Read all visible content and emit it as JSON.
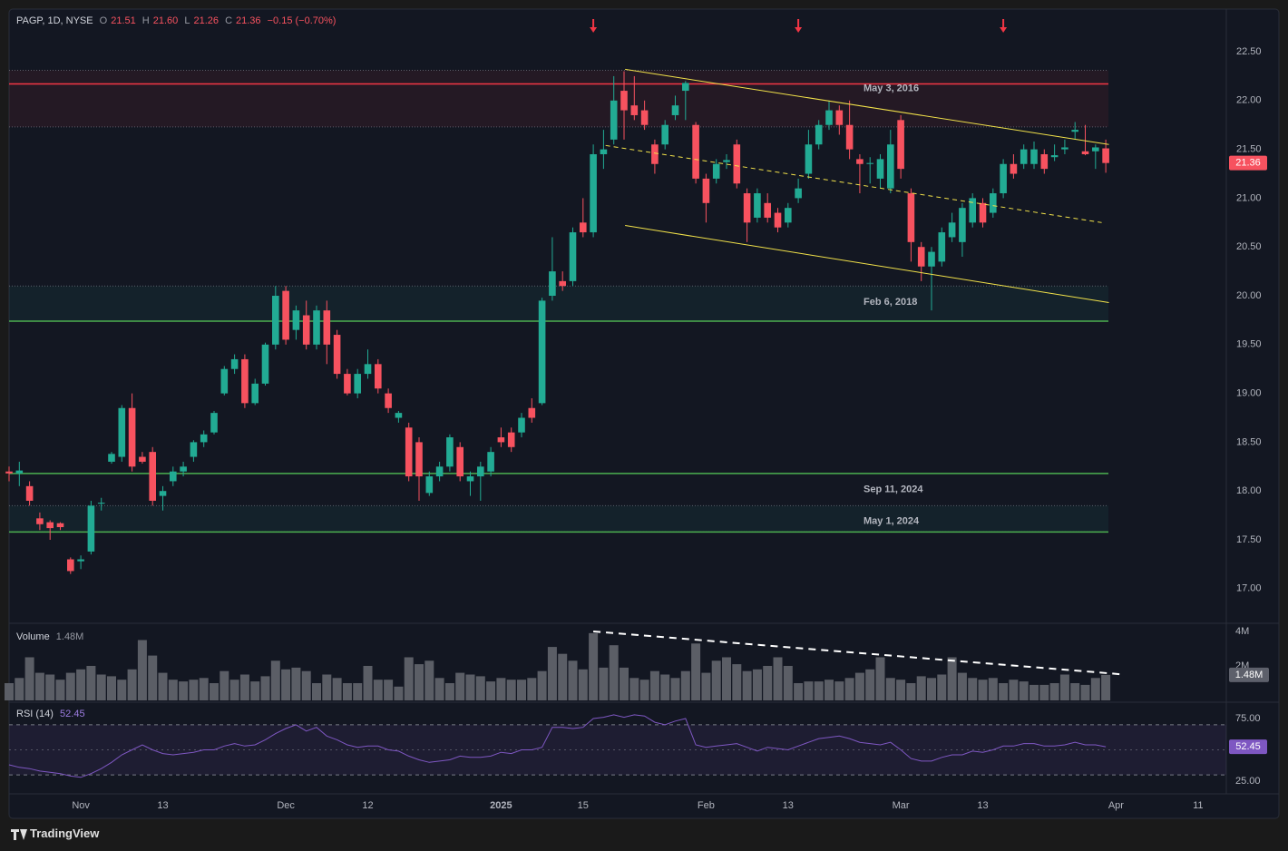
{
  "chart_data": [
    {
      "type": "candlestick",
      "title": "PAGP, 1D, NYSE",
      "legend": [
        {
          "label": "O",
          "value": "21.51"
        },
        {
          "label": "H",
          "value": "21.60"
        },
        {
          "label": "L",
          "value": "21.26"
        },
        {
          "label": "C",
          "value": "21.36"
        }
      ],
      "change": "−0.15 (−0.70%)",
      "up_color": "#22ab94",
      "down_color": "#f7525f",
      "x": [
        0,
        1,
        2,
        3,
        4,
        5,
        6,
        7,
        8,
        9,
        10,
        11,
        12,
        13,
        14,
        15,
        16,
        17,
        18,
        19,
        20,
        21,
        22,
        23,
        24,
        25,
        26,
        27,
        28,
        29,
        30,
        31,
        32,
        33,
        34,
        35,
        36,
        37,
        38,
        39,
        40,
        41,
        42,
        43,
        44,
        45,
        46,
        47,
        48,
        49,
        50,
        51,
        52,
        53,
        54,
        55,
        56,
        57,
        58,
        59,
        60,
        61,
        62,
        63,
        64,
        65,
        66,
        67,
        68,
        69,
        70,
        71,
        72,
        73,
        74,
        75,
        76,
        77,
        78,
        79,
        80,
        81,
        82,
        83,
        84,
        85,
        86,
        87,
        88,
        89,
        90,
        91,
        92,
        93,
        94,
        95,
        96,
        97,
        98,
        99,
        100,
        101,
        102,
        103,
        104,
        105,
        106,
        107
      ],
      "open": [
        18.2,
        18.18,
        18.05,
        17.72,
        17.68,
        17.67,
        17.3,
        17.28,
        17.38,
        17.87,
        18.3,
        18.35,
        18.85,
        18.35,
        18.4,
        17.95,
        18.1,
        18.2,
        18.35,
        18.5,
        18.6,
        19.0,
        19.25,
        19.35,
        18.9,
        19.1,
        19.5,
        20.05,
        19.65,
        19.8,
        19.5,
        19.85,
        19.6,
        19.2,
        19.0,
        19.2,
        19.3,
        19.0,
        18.75,
        18.65,
        18.5,
        17.98,
        18.15,
        18.25,
        18.45,
        18.1,
        18.15,
        18.2,
        18.55,
        18.6,
        18.6,
        18.85,
        18.9,
        20.0,
        20.15,
        20.15,
        20.75,
        20.65,
        21.45,
        21.6,
        22.1,
        21.95,
        21.9,
        21.55,
        21.55,
        21.85,
        22.1,
        21.75,
        21.2,
        21.2,
        21.37,
        21.55,
        21.05,
        20.8,
        20.95,
        20.85,
        20.75,
        21.0,
        21.25,
        21.55,
        21.75,
        21.9,
        21.75,
        21.4,
        21.35,
        21.2,
        21.1,
        21.8,
        21.05,
        20.5,
        20.3,
        20.35,
        20.6,
        20.55,
        20.75,
        20.95,
        20.85,
        21.05,
        21.35,
        21.35,
        21.35,
        21.45,
        21.42,
        21.5,
        21.68,
        21.48,
        21.48,
        21.51
      ],
      "high": [
        18.25,
        18.3,
        18.1,
        17.78,
        17.7,
        17.68,
        17.32,
        17.34,
        17.9,
        17.93,
        18.4,
        18.88,
        19.0,
        18.4,
        18.45,
        18.05,
        18.25,
        18.3,
        18.52,
        18.62,
        18.82,
        19.28,
        19.4,
        19.4,
        19.15,
        19.52,
        20.1,
        20.1,
        19.9,
        19.95,
        19.9,
        19.95,
        19.65,
        19.25,
        19.25,
        19.45,
        19.35,
        19.05,
        18.82,
        18.7,
        18.55,
        18.2,
        18.3,
        18.58,
        18.5,
        18.2,
        18.3,
        18.45,
        18.65,
        18.65,
        18.8,
        18.95,
        19.98,
        20.6,
        20.25,
        20.7,
        21.0,
        21.55,
        21.7,
        22.25,
        22.3,
        22.25,
        22.0,
        21.6,
        21.8,
        22.05,
        22.2,
        21.78,
        21.25,
        21.4,
        21.45,
        21.6,
        21.1,
        21.1,
        21.05,
        20.9,
        20.95,
        21.2,
        21.7,
        21.8,
        22.0,
        21.95,
        22.0,
        21.45,
        21.42,
        21.45,
        21.7,
        21.85,
        21.1,
        20.55,
        20.5,
        20.7,
        20.85,
        20.95,
        21.05,
        21.0,
        21.1,
        21.4,
        21.45,
        21.55,
        21.58,
        21.5,
        21.55,
        21.6,
        21.78,
        21.75,
        21.55,
        21.6
      ],
      "low": [
        18.1,
        18.05,
        17.85,
        17.6,
        17.5,
        17.6,
        17.15,
        17.2,
        17.35,
        17.8,
        18.28,
        18.3,
        18.2,
        18.28,
        17.85,
        17.8,
        18.05,
        18.15,
        18.3,
        18.45,
        18.58,
        18.98,
        19.2,
        18.85,
        18.88,
        19.08,
        19.45,
        19.5,
        19.55,
        19.45,
        19.45,
        19.3,
        19.15,
        18.98,
        18.95,
        19.15,
        19.0,
        18.8,
        18.7,
        18.1,
        17.9,
        17.95,
        18.1,
        18.2,
        18.1,
        17.95,
        17.9,
        18.15,
        18.45,
        18.4,
        18.55,
        18.7,
        18.88,
        19.95,
        20.05,
        20.1,
        20.6,
        20.6,
        21.3,
        21.55,
        21.6,
        21.8,
        21.7,
        21.25,
        21.5,
        21.8,
        21.8,
        21.15,
        20.75,
        21.15,
        21.3,
        21.1,
        20.55,
        20.75,
        20.75,
        20.65,
        20.7,
        20.95,
        21.2,
        21.5,
        21.7,
        21.65,
        21.4,
        21.05,
        21.15,
        21.1,
        21.05,
        21.2,
        20.35,
        20.15,
        19.85,
        20.3,
        20.55,
        20.4,
        20.7,
        20.7,
        20.8,
        21.0,
        21.2,
        21.3,
        21.3,
        21.25,
        21.38,
        21.45,
        21.6,
        21.44,
        21.3,
        21.26
      ],
      "close": [
        18.18,
        18.21,
        17.9,
        17.66,
        17.62,
        17.63,
        17.18,
        17.3,
        17.85,
        17.88,
        18.38,
        18.85,
        18.25,
        18.3,
        17.9,
        18.0,
        18.2,
        18.25,
        18.5,
        18.58,
        18.8,
        19.25,
        19.35,
        18.9,
        19.1,
        19.5,
        20.0,
        19.55,
        19.85,
        19.5,
        19.85,
        19.5,
        19.2,
        19.0,
        19.2,
        19.3,
        19.05,
        18.85,
        18.8,
        18.15,
        18.15,
        18.15,
        18.25,
        18.55,
        18.15,
        18.15,
        18.25,
        18.4,
        18.5,
        18.45,
        18.75,
        18.75,
        19.95,
        20.25,
        20.1,
        20.65,
        20.65,
        21.45,
        21.5,
        22.0,
        21.9,
        21.85,
        21.75,
        21.35,
        21.75,
        21.95,
        22.18,
        21.2,
        20.95,
        21.35,
        21.39,
        21.15,
        20.75,
        21.05,
        20.8,
        20.7,
        20.9,
        21.1,
        21.55,
        21.75,
        21.9,
        21.75,
        21.5,
        21.35,
        21.36,
        21.4,
        21.55,
        21.3,
        20.55,
        20.3,
        20.45,
        20.65,
        20.75,
        20.9,
        21.0,
        20.75,
        21.05,
        21.35,
        21.25,
        21.5,
        21.5,
        21.3,
        21.44,
        21.52,
        21.7,
        21.45,
        21.52,
        21.36
      ],
      "xlim": [
        0,
        118.76
      ],
      "xticks": [
        {
          "value": 7,
          "label": "Nov"
        },
        {
          "value": 15,
          "label": "13"
        },
        {
          "value": 27,
          "label": "Dec"
        },
        {
          "value": 35,
          "label": "12"
        },
        {
          "value": 48,
          "label": "2025"
        },
        {
          "value": 56,
          "label": "15"
        },
        {
          "value": 68,
          "label": "Feb"
        },
        {
          "value": 76,
          "label": "13"
        },
        {
          "value": 87,
          "label": "Mar"
        },
        {
          "value": 95,
          "label": "13"
        },
        {
          "value": 108,
          "label": "Apr"
        },
        {
          "value": 116,
          "label": "11"
        }
      ],
      "ylim": [
        16.645,
        22.937
      ],
      "yticks": [
        {
          "value": 17,
          "label": "17.00"
        },
        {
          "value": 17.5,
          "label": "17.50"
        },
        {
          "value": 18,
          "label": "18.00"
        },
        {
          "value": 18.5,
          "label": "18.50"
        },
        {
          "value": 19,
          "label": "19.00"
        },
        {
          "value": 19.5,
          "label": "19.50"
        },
        {
          "value": 20,
          "label": "20.00"
        },
        {
          "value": 20.5,
          "label": "20.50"
        },
        {
          "value": 21,
          "label": "21.00"
        },
        {
          "value": 21.5,
          "label": "21.50"
        },
        {
          "value": 22,
          "label": "22.00"
        },
        {
          "value": 22.5,
          "label": "22.50"
        }
      ],
      "grid": false,
      "zones": [
        {
          "from": 21.73,
          "to": 22.31,
          "color": "#f23645"
        },
        {
          "from": 19.74,
          "to": 20.1,
          "color": "#22ab94"
        },
        {
          "from": 17.58,
          "to": 17.85,
          "color": "#22ab94"
        }
      ],
      "levels": [
        {
          "value": 22.17,
          "color": "#f23645",
          "label": "May 3, 2016"
        },
        {
          "value": 19.74,
          "color": "#4caf50",
          "label": "Feb 6, 2018"
        },
        {
          "value": 18.18,
          "color": "#4caf50",
          "label": "Sep 11, 2024"
        },
        {
          "value": 17.58,
          "color": "#4caf50",
          "label": "May 1, 2024"
        }
      ],
      "trendlines": [
        {
          "x": [
            60.1,
            107.3
          ],
          "y": [
            22.32,
            21.55
          ],
          "color": "#f2e24a",
          "dashed": false
        },
        {
          "x": [
            60.1,
            107.3
          ],
          "y": [
            20.72,
            19.93
          ],
          "color": "#f2e24a",
          "dashed": false
        },
        {
          "x": [
            58.2,
            106.6
          ],
          "y": [
            21.54,
            20.75
          ],
          "color": "#f2e24a",
          "dashed": true
        }
      ],
      "markers": {
        "x": [
          57,
          77,
          97
        ],
        "color": "#f23645"
      }
    },
    {
      "type": "bar",
      "title": "Volume",
      "current_label": "1.48M",
      "color": "#5b5e66",
      "values": [
        1.0,
        1.3,
        2.5,
        1.6,
        1.5,
        1.2,
        1.6,
        1.8,
        2.0,
        1.5,
        1.4,
        1.2,
        1.8,
        3.5,
        2.6,
        1.6,
        1.2,
        1.1,
        1.2,
        1.3,
        1.0,
        1.7,
        1.2,
        1.5,
        1.1,
        1.4,
        2.3,
        1.8,
        1.9,
        1.7,
        1.0,
        1.5,
        1.3,
        1.0,
        1.0,
        2.0,
        1.2,
        1.2,
        0.8,
        2.5,
        2.1,
        2.3,
        1.3,
        1.0,
        1.6,
        1.5,
        1.4,
        1.1,
        1.3,
        1.2,
        1.2,
        1.3,
        1.7,
        3.1,
        2.7,
        2.3,
        1.8,
        3.9,
        1.9,
        3.2,
        1.9,
        1.3,
        1.2,
        1.7,
        1.5,
        1.3,
        1.7,
        3.3,
        1.6,
        2.3,
        2.5,
        2.1,
        1.7,
        1.8,
        2.0,
        2.5,
        2.0,
        1.0,
        1.1,
        1.1,
        1.2,
        1.1,
        1.3,
        1.6,
        1.8,
        2.5,
        1.3,
        1.2,
        1.0,
        1.4,
        1.3,
        1.5,
        2.5,
        1.6,
        1.3,
        1.2,
        1.3,
        1.0,
        1.2,
        1.1,
        0.9,
        0.9,
        1.0,
        1.5,
        1.0,
        0.9,
        1.3,
        1.48
      ],
      "ylim": [
        0,
        4.42
      ],
      "yticks": [
        {
          "value": 4,
          "label": "4M"
        },
        {
          "value": 2,
          "label": "2M"
        }
      ],
      "trendline": {
        "x": [
          57,
          108.8
        ],
        "y": [
          4.0,
          1.5
        ],
        "color": "#ffffff"
      }
    },
    {
      "type": "line",
      "title": "RSI (14)",
      "color": "#7e57c2",
      "values": [
        38,
        36,
        35,
        33,
        32,
        31,
        29,
        28,
        31,
        35,
        40,
        46,
        50,
        54,
        50,
        47,
        46,
        47,
        48,
        50,
        50,
        53,
        55,
        53,
        54,
        58,
        63,
        67,
        70,
        65,
        68,
        61,
        58,
        54,
        52,
        53,
        53,
        50,
        49,
        45,
        42,
        40,
        41,
        42,
        45,
        44,
        44,
        45,
        48,
        47,
        50,
        50,
        52,
        68,
        68,
        67,
        68,
        75,
        76,
        78,
        76,
        78,
        77,
        72,
        70,
        73,
        75,
        54,
        52,
        53,
        54,
        55,
        52,
        49,
        52,
        51,
        50,
        53,
        56,
        59,
        60,
        61,
        59,
        56,
        55,
        54,
        56,
        50,
        43,
        41,
        41,
        44,
        46,
        46,
        49,
        48,
        50,
        53,
        53,
        55,
        55,
        53,
        53,
        54,
        56,
        54,
        54,
        52.45
      ],
      "ylim": [
        17,
        86.6
      ],
      "yticks": [
        {
          "value": 75,
          "label": "75.00"
        },
        {
          "value": 25,
          "label": "25.00"
        }
      ],
      "band": [
        30,
        70
      ],
      "midline": 50
    }
  ],
  "footer": {
    "brand": "TradingView"
  }
}
